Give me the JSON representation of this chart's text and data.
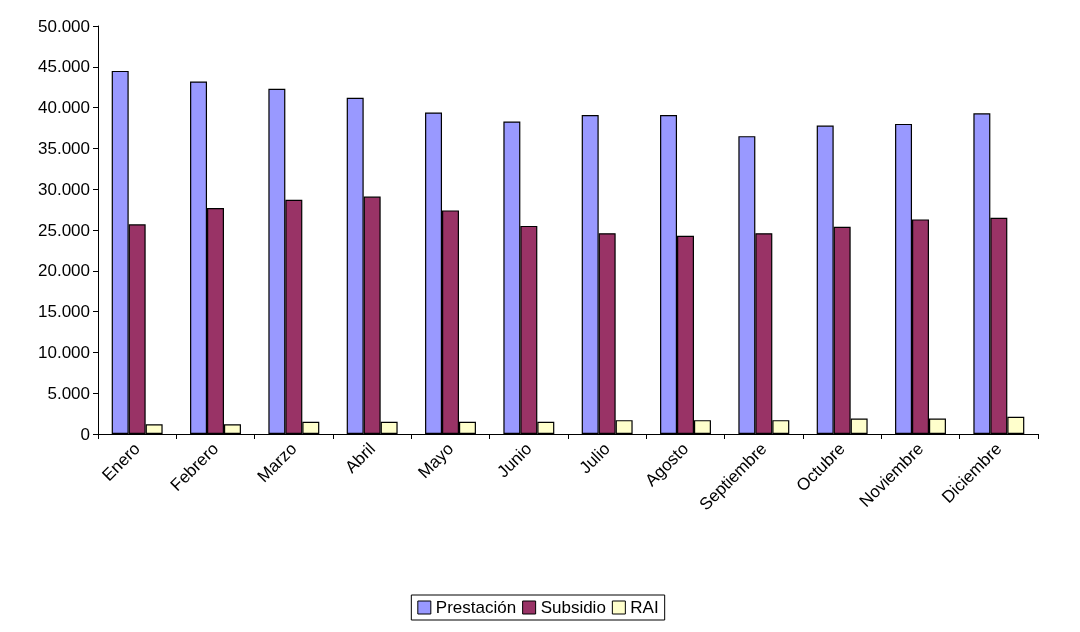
{
  "chart_data": {
    "type": "bar",
    "categories": [
      "Enero",
      "Febrero",
      "Marzo",
      "Abril",
      "Mayo",
      "Junio",
      "Julio",
      "Agosto",
      "Septiembre",
      "Octubre",
      "Noviembre",
      "Diciembre"
    ],
    "series": [
      {
        "name": "Prestación",
        "color": "#9999ff",
        "values": [
          44500,
          43200,
          42300,
          41200,
          39400,
          38300,
          39100,
          39100,
          36500,
          37800,
          38000,
          39300
        ]
      },
      {
        "name": "Subsidio",
        "color": "#993366",
        "values": [
          25700,
          27700,
          28700,
          29100,
          27400,
          25500,
          24600,
          24300,
          24600,
          25400,
          26300,
          26500
        ]
      },
      {
        "name": "RAI",
        "color": "#ffffcc",
        "values": [
          1200,
          1200,
          1500,
          1500,
          1500,
          1500,
          1700,
          1700,
          1700,
          1900,
          1900,
          2100
        ]
      }
    ],
    "ylim": [
      0,
      50000
    ],
    "yticks": [
      0,
      {
        "value": 5000,
        "label": "5.000"
      },
      {
        "value": 10000,
        "label": "10.000"
      },
      {
        "value": 15000,
        "label": "15.000"
      },
      {
        "value": 20000,
        "label": "20.000"
      },
      {
        "value": 25000,
        "label": "25.000"
      },
      {
        "value": 30000,
        "label": "30.000"
      },
      {
        "value": 35000,
        "label": "35.000"
      },
      {
        "value": 40000,
        "label": "40.000"
      },
      {
        "value": 45000,
        "label": "45.000"
      },
      {
        "value": 50000,
        "label": "50.000"
      }
    ],
    "grid": false,
    "legend": "bottom"
  }
}
